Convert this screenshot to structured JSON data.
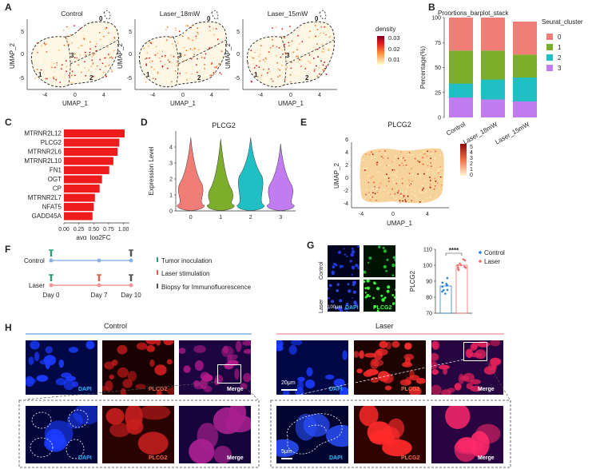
{
  "panels": {
    "A": {
      "label": "A",
      "umaps": [
        {
          "title": "Control",
          "clusters": [
            "0",
            "1",
            "2",
            "3"
          ]
        },
        {
          "title": "Laser_18mW",
          "clusters": [
            "0",
            "1",
            "2",
            "3"
          ]
        },
        {
          "title": "Laser_15mW",
          "clusters": [
            "0",
            "1",
            "2",
            "3"
          ]
        }
      ],
      "xlabel": "UMAP_1",
      "ylabel": "UMAP_2",
      "xticks": [
        "-4",
        "0",
        "4"
      ],
      "yticks": [
        "5",
        "0",
        "-5"
      ],
      "colorbar": {
        "title": "density",
        "ticks": [
          "0.03",
          "0.02",
          "0.01"
        ]
      }
    },
    "B": {
      "label": "B"
    },
    "C": {
      "label": "C"
    },
    "D": {
      "label": "D"
    },
    "E": {
      "label": "E",
      "title": "PLCG2",
      "xlabel": "UMAP_1",
      "ylabel": "UMAP_2",
      "xticks": [
        "-4",
        "0",
        "4"
      ],
      "yticks": [
        "6",
        "4",
        "2",
        "0",
        "-2",
        "-4"
      ],
      "colorbar_ticks": [
        "5",
        "4",
        "3",
        "2",
        "1",
        "0"
      ]
    },
    "F": {
      "label": "F",
      "rows": [
        "Control",
        "Laser"
      ],
      "days": [
        "Day 0",
        "Day 7",
        "Day 10"
      ],
      "legend": [
        "Tumor inoculation",
        "Laser stimulation",
        "Biopsy for Immunofluorescence"
      ]
    },
    "G": {
      "label": "G",
      "rows": [
        "Control",
        "Laser"
      ],
      "channels": [
        "DAPI",
        "PLCG2"
      ],
      "scale": "100μm",
      "ylabel": "PLCG2",
      "yticks": [
        "110",
        "100",
        "90",
        "80",
        "70"
      ],
      "significance": "****",
      "legend": [
        "Control",
        "Laser"
      ]
    },
    "H": {
      "label": "H",
      "groups": [
        "Control",
        "Laser"
      ],
      "channels": [
        "DAPI",
        "PLCG2",
        "Merge"
      ],
      "scale_top": "20μm",
      "scale_bottom": "5μm"
    }
  },
  "chart_data": [
    {
      "type": "bar",
      "title": "Proortions_barplot_stack",
      "stacked": true,
      "categories": [
        "Control",
        "Laser_18mW",
        "Laser_15mW"
      ],
      "series": [
        {
          "name": "0",
          "values": [
            33,
            33,
            33
          ],
          "color": "#f07e77"
        },
        {
          "name": "1",
          "values": [
            33,
            29,
            23
          ],
          "color": "#7cae2c"
        },
        {
          "name": "2",
          "values": [
            14,
            20,
            24
          ],
          "color": "#1fbfc4"
        },
        {
          "name": "3",
          "values": [
            20,
            18,
            16
          ],
          "color": "#c17cf2"
        }
      ],
      "xlabel": "",
      "ylabel": "Percentage(%)",
      "ylim": [
        0,
        100
      ],
      "yticks": [
        "0",
        "25",
        "50",
        "75",
        "100"
      ],
      "legend_title": "Seurat_cluster",
      "legend_position": "right"
    },
    {
      "type": "bar",
      "orientation": "horizontal",
      "categories": [
        "MTRNR2L12",
        "PLCG2",
        "MTRNR2L6",
        "MTRNR2L10",
        "FN1",
        "OGT",
        "CP",
        "MTRNR2L7",
        "NFAT5",
        "GADD45A"
      ],
      "values": [
        1.02,
        0.93,
        0.9,
        0.83,
        0.76,
        0.64,
        0.6,
        0.52,
        0.5,
        0.48
      ],
      "color": "#ee1c1c",
      "xlabel": "avg_log2FC",
      "xlim": [
        0,
        1.1
      ],
      "xticks": [
        "0.00",
        "0.25",
        "0.50",
        "0.75",
        "1.00"
      ]
    },
    {
      "type": "violin",
      "title": "PLCG2",
      "categories": [
        "0",
        "1",
        "2",
        "3"
      ],
      "colors": [
        "#f07e77",
        "#7cae2c",
        "#1fbfc4",
        "#c17cf2"
      ],
      "peaks": [
        1.7,
        1.3,
        2.2,
        1.6
      ],
      "max": [
        4.6,
        4.5,
        4.6,
        4.2
      ],
      "ylabel": "Expression Level",
      "ylim": [
        0,
        5
      ],
      "yticks": [
        "0",
        "1",
        "2",
        "3",
        "4"
      ]
    },
    {
      "type": "bar",
      "title": "PLCG2",
      "categories": [
        "Control",
        "Laser"
      ],
      "values": [
        87,
        100
      ],
      "colors": [
        "#2b7fd6",
        "#ee6b6b"
      ],
      "ylabel": "PLCG2",
      "ylim": [
        70,
        110
      ]
    }
  ]
}
